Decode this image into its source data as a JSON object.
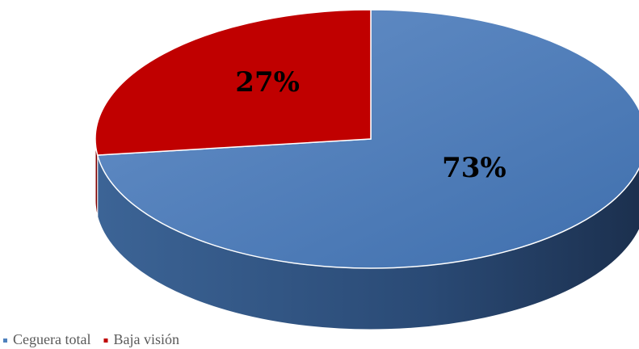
{
  "chart_data": {
    "type": "pie",
    "categories": [
      "Ceguera total",
      "Baja visión"
    ],
    "values": [
      73,
      27
    ],
    "value_labels": [
      "73%",
      "27%"
    ],
    "colors": [
      "#4f81bd",
      "#c00000"
    ],
    "legend": "bottom-left"
  }
}
